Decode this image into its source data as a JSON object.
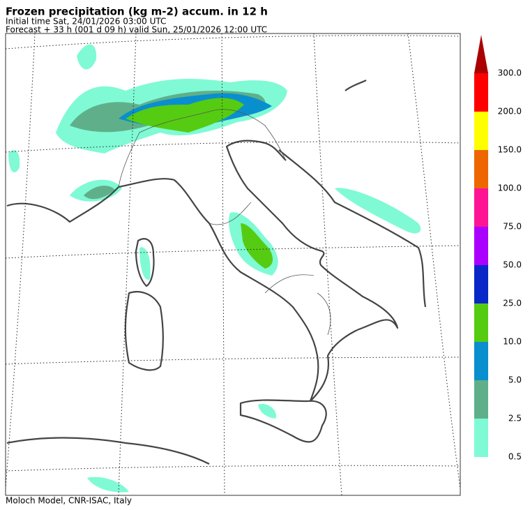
{
  "header": {
    "title": "Frozen precipitation (kg m-2) accum. in 12 h",
    "initial_time": "Initial time  Sat, 24/01/2026  03:00 UTC",
    "forecast": "Forecast  +  33 h  (001 d 09 h)  valid Sun, 25/01/2026 12:00 UTC"
  },
  "legend": {
    "labels": [
      "0.5",
      "2.5",
      "5.0",
      "10.0",
      "25.0",
      "50.0",
      "75.0",
      "100.0",
      "150.0",
      "200.0",
      "300.0"
    ],
    "colors": [
      "#7ffad4",
      "#5fb08a",
      "#0a8fce",
      "#55cc11",
      "#0a28c8",
      "#aa00ff",
      "#ff1493",
      "#ee6600",
      "#ffff00",
      "#ff0000"
    ],
    "arrow_color": "#aa0000"
  },
  "footer": "Moloch Model, CNR-ISAC, Italy"
}
